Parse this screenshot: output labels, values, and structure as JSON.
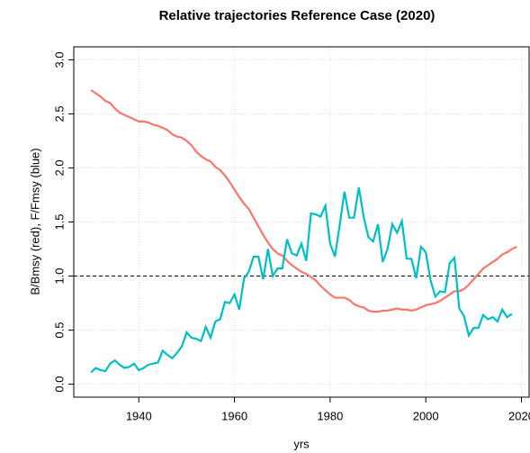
{
  "chart_data": {
    "type": "line",
    "title": "Relative trajectories Reference Case (2020)",
    "x_label": "yrs",
    "y_label": "B/Bmsy (red), F/Fmsy (blue)",
    "x": [
      1930,
      1931,
      1932,
      1933,
      1934,
      1935,
      1936,
      1937,
      1938,
      1939,
      1940,
      1941,
      1942,
      1943,
      1944,
      1945,
      1946,
      1947,
      1948,
      1949,
      1950,
      1951,
      1952,
      1953,
      1954,
      1955,
      1956,
      1957,
      1958,
      1959,
      1960,
      1961,
      1962,
      1963,
      1964,
      1965,
      1966,
      1967,
      1968,
      1969,
      1970,
      1971,
      1972,
      1973,
      1974,
      1975,
      1976,
      1977,
      1978,
      1979,
      1980,
      1981,
      1982,
      1983,
      1984,
      1985,
      1986,
      1987,
      1988,
      1989,
      1990,
      1991,
      1992,
      1993,
      1994,
      1995,
      1996,
      1997,
      1998,
      1999,
      2000,
      2001,
      2002,
      2003,
      2004,
      2005,
      2006,
      2007,
      2008,
      2009,
      2010,
      2011,
      2012,
      2013,
      2014,
      2015,
      2016,
      2017,
      2018,
      2019
    ],
    "series": [
      {
        "color": "#f8766d",
        "values": [
          2.72,
          2.69,
          2.66,
          2.62,
          2.6,
          2.55,
          2.51,
          2.49,
          2.47,
          2.45,
          2.43,
          2.43,
          2.42,
          2.4,
          2.39,
          2.37,
          2.35,
          2.31,
          2.29,
          2.28,
          2.25,
          2.21,
          2.15,
          2.11,
          2.08,
          2.06,
          2.01,
          1.98,
          1.93,
          1.87,
          1.8,
          1.73,
          1.67,
          1.62,
          1.54,
          1.46,
          1.38,
          1.31,
          1.25,
          1.21,
          1.19,
          1.14,
          1.1,
          1.07,
          1.04,
          1.02,
          0.99,
          0.96,
          0.91,
          0.87,
          0.83,
          0.8,
          0.8,
          0.8,
          0.78,
          0.74,
          0.72,
          0.71,
          0.68,
          0.67,
          0.67,
          0.68,
          0.68,
          0.69,
          0.7,
          0.69,
          0.69,
          0.68,
          0.69,
          0.71,
          0.73,
          0.74,
          0.75,
          0.77,
          0.8,
          0.83,
          0.86,
          0.86,
          0.88,
          0.92,
          0.97,
          1.02,
          1.07,
          1.1,
          1.13,
          1.16,
          1.2,
          1.22,
          1.25,
          1.27
        ]
      },
      {
        "color": "#00bfc4",
        "values": [
          0.11,
          0.15,
          0.13,
          0.12,
          0.19,
          0.22,
          0.18,
          0.15,
          0.16,
          0.19,
          0.13,
          0.15,
          0.18,
          0.19,
          0.2,
          0.31,
          0.27,
          0.24,
          0.29,
          0.35,
          0.48,
          0.43,
          0.42,
          0.4,
          0.53,
          0.43,
          0.58,
          0.6,
          0.76,
          0.75,
          0.83,
          0.69,
          0.98,
          1.04,
          1.18,
          1.18,
          0.97,
          1.25,
          1.0,
          1.07,
          1.07,
          1.34,
          1.21,
          1.19,
          1.3,
          1.14,
          1.58,
          1.57,
          1.55,
          1.65,
          1.3,
          1.18,
          1.47,
          1.78,
          1.54,
          1.54,
          1.82,
          1.55,
          1.36,
          1.32,
          1.48,
          1.13,
          1.25,
          1.48,
          1.4,
          1.51,
          1.16,
          1.16,
          0.98,
          1.27,
          1.22,
          0.96,
          0.81,
          0.86,
          0.85,
          1.12,
          1.17,
          0.7,
          0.63,
          0.45,
          0.52,
          0.52,
          0.64,
          0.6,
          0.62,
          0.58,
          0.69,
          0.62,
          0.65,
          null
        ]
      }
    ],
    "hline": 1,
    "xlim": [
      1926.4,
      2021.6
    ],
    "ylim": [
      -0.12,
      3.12
    ],
    "xticks": [
      1940,
      1960,
      1980,
      2000,
      2020
    ],
    "yticks": [
      {
        "value": 0,
        "label": "0.0"
      },
      {
        "value": 0.5,
        "label": "0.5"
      },
      {
        "value": 1,
        "label": "1.0"
      },
      {
        "value": 1.5,
        "label": "1.5"
      },
      {
        "value": 2,
        "label": "2.0"
      },
      {
        "value": 2.5,
        "label": "2.5"
      },
      {
        "value": 3,
        "label": "3.0"
      }
    ],
    "grid": true
  }
}
